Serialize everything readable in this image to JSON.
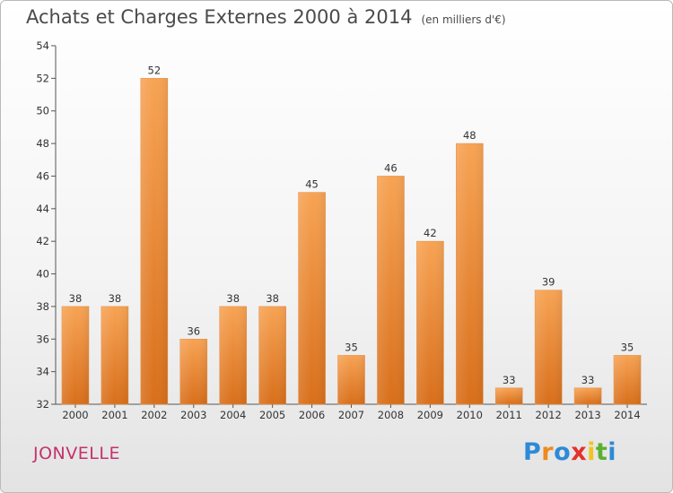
{
  "chart_data": {
    "type": "bar",
    "title": "Achats et Charges Externes 2000 à 2014",
    "subtitle": "(en milliers d'€)",
    "categories": [
      "2000",
      "2001",
      "2002",
      "2003",
      "2004",
      "2005",
      "2006",
      "2007",
      "2008",
      "2009",
      "2010",
      "2011",
      "2012",
      "2013",
      "2014"
    ],
    "values": [
      38,
      38,
      52,
      36,
      38,
      38,
      45,
      35,
      46,
      42,
      48,
      33,
      39,
      33,
      35
    ],
    "ylim": [
      32,
      54
    ],
    "yticks": [
      32,
      34,
      36,
      38,
      40,
      42,
      44,
      46,
      48,
      50,
      52,
      54
    ],
    "xlabel": "",
    "ylabel": "",
    "grid": false,
    "bar_color": "#f28a2e"
  },
  "commune": "JONVELLE",
  "logo": {
    "letters": [
      "P",
      "r",
      "o",
      "x",
      "i",
      "t",
      "i"
    ],
    "colors": [
      "#2d8ad6",
      "#f08a1d",
      "#2d8ad6",
      "#e5312c",
      "#f0c51d",
      "#5bb030",
      "#2d8ad6"
    ]
  },
  "colors": {
    "title": "#4a4a4a",
    "commune": "#c4326c"
  }
}
